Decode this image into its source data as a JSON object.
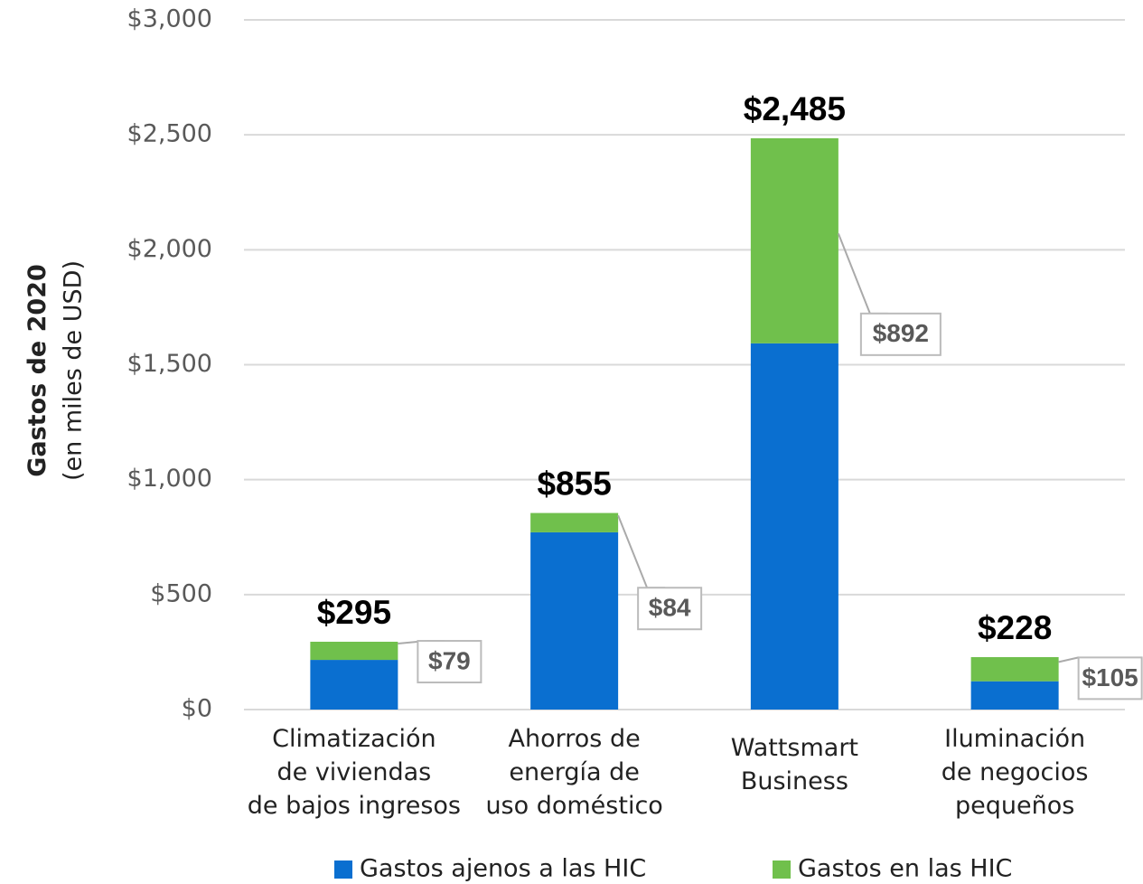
{
  "chart_data": {
    "type": "stacked_bar",
    "y_label": {
      "bold": "Gastos de 2020",
      "normal": "(en miles de USD)"
    },
    "categories": [
      [
        "Climatización",
        "de viviendas",
        "de bajos ingresos"
      ],
      [
        "Ahorros de",
        "energía de",
        "uso doméstico"
      ],
      [
        "Wattsmart",
        "Business"
      ],
      [
        "Iluminación",
        "de negocios",
        "pequeños"
      ]
    ],
    "series": [
      {
        "name": "Gastos ajenos a las HIC",
        "color": "#0a6fd0",
        "values": [
          216,
          771,
          1593,
          123
        ]
      },
      {
        "name": "Gastos en las HIC",
        "color": "#70c04c",
        "values": [
          79,
          84,
          892,
          105
        ],
        "value_labels": [
          "$79",
          "$84",
          "$892",
          "$105"
        ]
      }
    ],
    "totals": [
      295,
      855,
      2485,
      228
    ],
    "total_labels": [
      "$295",
      "$855",
      "$2,485",
      "$228"
    ],
    "ylim": [
      0,
      3000
    ],
    "yticks": [
      {
        "value": 0,
        "label": "$0"
      },
      {
        "value": 500,
        "label": "$500"
      },
      {
        "value": 1000,
        "label": "$1,000"
      },
      {
        "value": 1500,
        "label": "$1,500"
      },
      {
        "value": 2000,
        "label": "$2,000"
      },
      {
        "value": 2500,
        "label": "$2,500"
      },
      {
        "value": 3000,
        "label": "$3,000"
      }
    ],
    "grid": true,
    "legend": "bottom"
  }
}
